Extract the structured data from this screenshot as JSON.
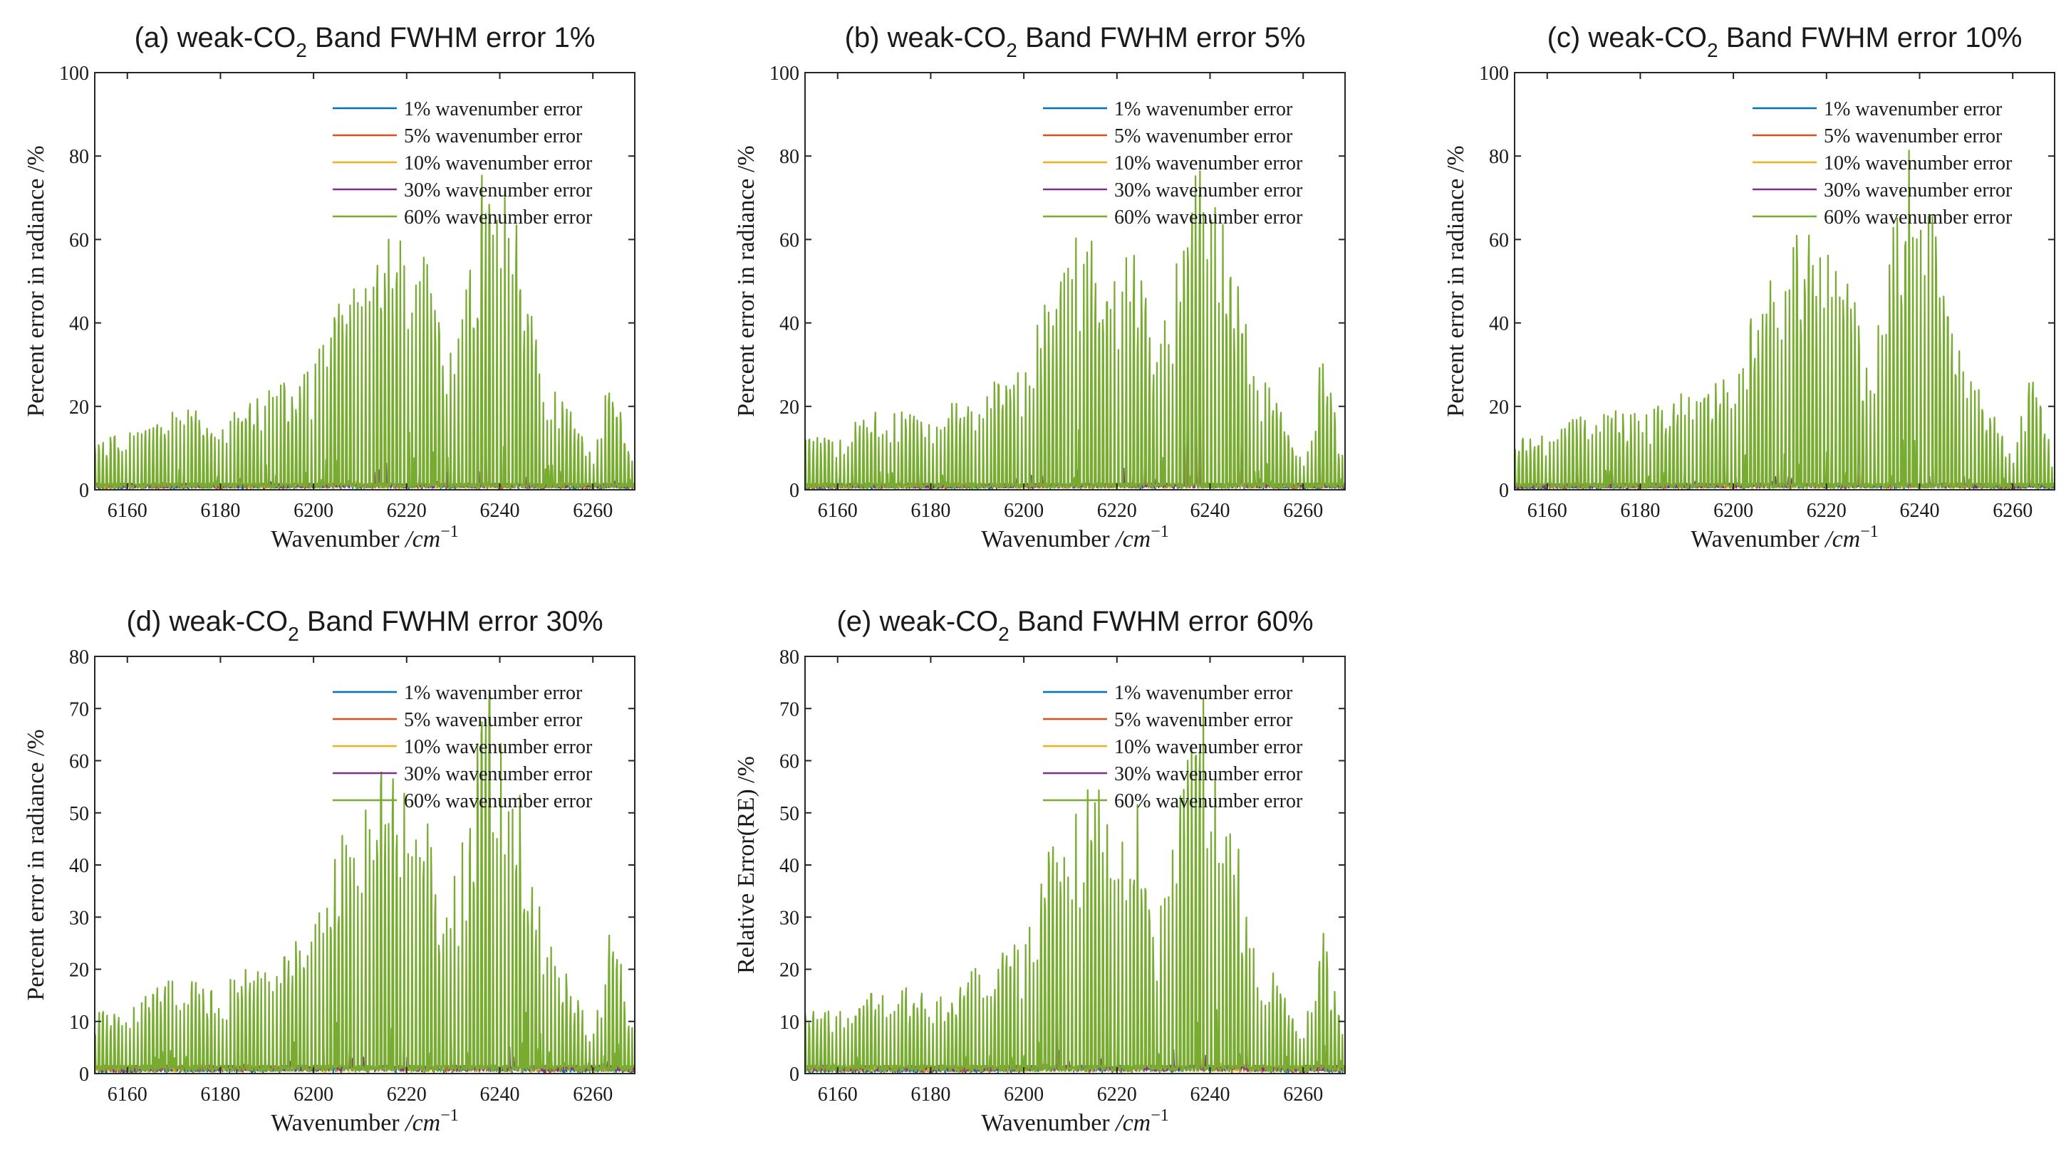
{
  "chart_data": [
    {
      "type": "line",
      "title": {
        "prefix": "(a) weak-CO",
        "subscript": "2",
        "suffix": " Band FWHM error 1%"
      },
      "xlabel": {
        "text": "Wavenumber ",
        "unit": "/cm",
        "exp": "−1"
      },
      "ylabel": "Percent error in radiance /%",
      "xlim": [
        6153,
        6269
      ],
      "ylim": [
        0,
        100
      ],
      "xticks": [
        6160,
        6180,
        6200,
        6220,
        6240,
        6260
      ],
      "yticks": [
        0,
        20,
        40,
        60,
        80,
        100
      ],
      "legend_position": "top-right",
      "series": [
        {
          "name": "1% wavenumber error",
          "color": "#0072BD",
          "peak_scale": 0.03
        },
        {
          "name": "5% wavenumber error",
          "color": "#D95319",
          "peak_scale": 0.07
        },
        {
          "name": "10% wavenumber error",
          "color": "#EDB120",
          "peak_scale": 0.15
        },
        {
          "name": "30% wavenumber error",
          "color": "#7E2F8E",
          "peak_scale": 0.42
        },
        {
          "name": "60% wavenumber error",
          "color": "#77AC30",
          "peak_scale": 1.0
        }
      ],
      "envelope": {
        "x": [
          6153,
          6160,
          6170,
          6180,
          6190,
          6200,
          6205,
          6210,
          6215,
          6220,
          6225,
          6228,
          6232,
          6235,
          6238,
          6241,
          6245,
          6250,
          6255,
          6260,
          6264,
          6269
        ],
        "y": [
          12,
          14,
          20,
          18,
          24,
          30,
          48,
          61,
          63,
          61,
          59,
          30,
          50,
          70,
          85,
          80,
          55,
          30,
          20,
          8,
          34,
          6
        ]
      }
    },
    {
      "type": "line",
      "title": {
        "prefix": "(b) weak-CO",
        "subscript": "2",
        "suffix": " Band FWHM error 5%"
      },
      "xlabel": {
        "text": "Wavenumber ",
        "unit": "/cm",
        "exp": "−1"
      },
      "ylabel": "Percent error in radiance /%",
      "xlim": [
        6153,
        6269
      ],
      "ylim": [
        0,
        100
      ],
      "xticks": [
        6160,
        6180,
        6200,
        6220,
        6240,
        6260
      ],
      "yticks": [
        0,
        20,
        40,
        60,
        80,
        100
      ],
      "legend_position": "top-right",
      "series": [
        {
          "name": "1% wavenumber error",
          "color": "#0072BD",
          "peak_scale": 0.03
        },
        {
          "name": "5% wavenumber error",
          "color": "#D95319",
          "peak_scale": 0.07
        },
        {
          "name": "10% wavenumber error",
          "color": "#EDB120",
          "peak_scale": 0.15
        },
        {
          "name": "30% wavenumber error",
          "color": "#7E2F8E",
          "peak_scale": 0.42
        },
        {
          "name": "60% wavenumber error",
          "color": "#77AC30",
          "peak_scale": 1.0
        }
      ],
      "envelope": {
        "x": [
          6153,
          6160,
          6170,
          6180,
          6190,
          6200,
          6205,
          6210,
          6215,
          6220,
          6225,
          6228,
          6232,
          6235,
          6238,
          6241,
          6245,
          6250,
          6255,
          6260,
          6264,
          6269
        ],
        "y": [
          12,
          14,
          20,
          18,
          24,
          30,
          47,
          60,
          62,
          60,
          58,
          30,
          49,
          69,
          84,
          79,
          54,
          30,
          20,
          8,
          34,
          6
        ]
      }
    },
    {
      "type": "line",
      "title": {
        "prefix": "(c) weak-CO",
        "subscript": "2",
        "suffix": " Band FWHM error 10%"
      },
      "xlabel": {
        "text": "Wavenumber ",
        "unit": "/cm",
        "exp": "−1"
      },
      "ylabel": "Percent error in radiance /%",
      "xlim": [
        6153,
        6269
      ],
      "ylim": [
        0,
        100
      ],
      "xticks": [
        6160,
        6180,
        6200,
        6220,
        6240,
        6260
      ],
      "yticks": [
        0,
        20,
        40,
        60,
        80,
        100
      ],
      "legend_position": "top-right",
      "series": [
        {
          "name": "1% wavenumber error",
          "color": "#0072BD",
          "peak_scale": 0.03
        },
        {
          "name": "5% wavenumber error",
          "color": "#D95319",
          "peak_scale": 0.07
        },
        {
          "name": "10% wavenumber error",
          "color": "#EDB120",
          "peak_scale": 0.15
        },
        {
          "name": "30% wavenumber error",
          "color": "#7E2F8E",
          "peak_scale": 0.42
        },
        {
          "name": "60% wavenumber error",
          "color": "#77AC30",
          "peak_scale": 1.0
        }
      ],
      "envelope": {
        "x": [
          6153,
          6160,
          6170,
          6180,
          6190,
          6200,
          6205,
          6210,
          6215,
          6220,
          6225,
          6228,
          6232,
          6235,
          6238,
          6241,
          6245,
          6250,
          6255,
          6260,
          6264,
          6269
        ],
        "y": [
          12,
          14,
          20,
          18,
          24,
          30,
          46,
          60,
          62,
          60,
          58,
          30,
          48,
          68,
          83,
          78,
          53,
          30,
          20,
          8,
          33,
          6
        ]
      }
    },
    {
      "type": "line",
      "title": {
        "prefix": "(d) weak-CO",
        "subscript": "2",
        "suffix": " Band FWHM error 30%"
      },
      "xlabel": {
        "text": "Wavenumber ",
        "unit": "/cm",
        "exp": "−1"
      },
      "ylabel": "Percent error in radiance /%",
      "xlim": [
        6153,
        6269
      ],
      "ylim": [
        0,
        80
      ],
      "xticks": [
        6160,
        6180,
        6200,
        6220,
        6240,
        6260
      ],
      "yticks": [
        0,
        10,
        20,
        30,
        40,
        50,
        60,
        70,
        80
      ],
      "legend_position": "top-right",
      "series": [
        {
          "name": "1% wavenumber error",
          "color": "#0072BD",
          "peak_scale": 0.03
        },
        {
          "name": "5% wavenumber error",
          "color": "#D95319",
          "peak_scale": 0.07
        },
        {
          "name": "10% wavenumber error",
          "color": "#EDB120",
          "peak_scale": 0.15
        },
        {
          "name": "30% wavenumber error",
          "color": "#7E2F8E",
          "peak_scale": 0.42
        },
        {
          "name": "60% wavenumber error",
          "color": "#77AC30",
          "peak_scale": 1.0
        }
      ],
      "envelope": {
        "x": [
          6153,
          6160,
          6170,
          6180,
          6190,
          6200,
          6205,
          6210,
          6215,
          6220,
          6225,
          6228,
          6232,
          6235,
          6238,
          6241,
          6245,
          6250,
          6255,
          6260,
          6264,
          6269
        ],
        "y": [
          12,
          13,
          19,
          17,
          23,
          28,
          44,
          56,
          58,
          56,
          54,
          28,
          46,
          65,
          79,
          74,
          50,
          28,
          18,
          8,
          32,
          6
        ]
      }
    },
    {
      "type": "line",
      "title": {
        "prefix": "(e) weak-CO",
        "subscript": "2",
        "suffix": " Band FWHM error 60%"
      },
      "xlabel": {
        "text": "Wavenumber ",
        "unit": "/cm",
        "exp": "−1"
      },
      "ylabel": "Relative Error(RE) /%",
      "xlim": [
        6153,
        6269
      ],
      "ylim": [
        0,
        80
      ],
      "xticks": [
        6160,
        6180,
        6200,
        6220,
        6240,
        6260
      ],
      "yticks": [
        0,
        10,
        20,
        30,
        40,
        50,
        60,
        70,
        80
      ],
      "legend_position": "top-right",
      "series": [
        {
          "name": "1% wavenumber error",
          "color": "#0072BD",
          "peak_scale": 0.03
        },
        {
          "name": "5% wavenumber error",
          "color": "#D95319",
          "peak_scale": 0.07
        },
        {
          "name": "10% wavenumber error",
          "color": "#EDB120",
          "peak_scale": 0.15
        },
        {
          "name": "30% wavenumber error",
          "color": "#7E2F8E",
          "peak_scale": 0.42
        },
        {
          "name": "60% wavenumber error",
          "color": "#77AC30",
          "peak_scale": 1.0
        }
      ],
      "envelope": {
        "x": [
          6153,
          6160,
          6170,
          6180,
          6190,
          6200,
          6205,
          6210,
          6215,
          6220,
          6225,
          6228,
          6232,
          6235,
          6238,
          6241,
          6245,
          6250,
          6255,
          6260,
          6264,
          6269
        ],
        "y": [
          12,
          12,
          17,
          16,
          21,
          26,
          42,
          53,
          56,
          53,
          52,
          27,
          44,
          62,
          75,
          70,
          48,
          27,
          17,
          7,
          31,
          6
        ]
      }
    }
  ]
}
